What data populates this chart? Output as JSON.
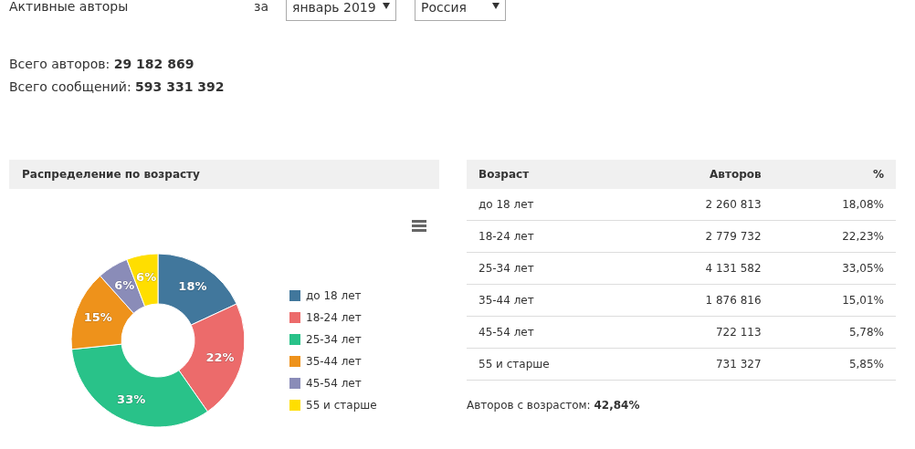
{
  "chart_data": [
    {
      "type": "donut",
      "title": "Распределение по возрасту",
      "annotations": [
        "Активные авторы",
        "за",
        "январь 2019",
        "Россия",
        "Всего авторов: 29 182 869",
        "Всего сообщений: 593 331 392"
      ],
      "categories": [
        "до 18 лет",
        "18-24 лет",
        "25-34 лет",
        "35-44 лет",
        "45-54 лет",
        "55 и старше"
      ],
      "values": [
        18.08,
        22.23,
        33.05,
        15.01,
        5.78,
        5.85
      ],
      "value_labels": [
        "18%",
        "22%",
        "33%",
        "15%",
        "6%",
        "6%"
      ],
      "colors": [
        "#41779c",
        "#ec6b6b",
        "#29c289",
        "#ee921b",
        "#8a8cb8",
        "#ffde00"
      ],
      "legend": "right"
    },
    {
      "type": "other",
      "xlabel": "Возраст",
      "categories": [
        "до 18 лет",
        "18-24 лет",
        "25-34 лет",
        "35-44 лет",
        "45-54 лет",
        "55 и старше"
      ],
      "series": [
        {
          "name": "Авторов",
          "values": [
            2260813,
            2779732,
            4131582,
            1876816,
            722113,
            731327
          ],
          "value_labels": [
            "2 260 813",
            "2 779 732",
            "4 131 582",
            "1 876 816",
            "722 113",
            "731 327"
          ]
        },
        {
          "name": "%",
          "values": [
            18.08,
            22.23,
            33.05,
            15.01,
            5.78,
            5.85
          ],
          "value_labels": [
            "18,08%",
            "22,23%",
            "33,05%",
            "15,01%",
            "5,78%",
            "5,85%"
          ]
        }
      ],
      "annotations": [
        "Авторов с возрастом: 42,84%"
      ]
    }
  ]
}
